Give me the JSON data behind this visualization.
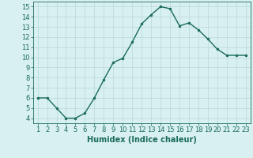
{
  "x": [
    1,
    2,
    3,
    4,
    5,
    6,
    7,
    8,
    9,
    10,
    11,
    12,
    13,
    14,
    15,
    16,
    17,
    18,
    19,
    20,
    21,
    22,
    23
  ],
  "y": [
    6,
    6,
    5,
    4,
    4,
    4.5,
    6,
    7.8,
    9.5,
    9.9,
    11.5,
    13.3,
    14.2,
    15,
    14.8,
    13.1,
    13.4,
    12.7,
    11.8,
    10.8,
    10.2,
    10.2,
    10.2
  ],
  "line_color": "#1a6b5a",
  "marker": "o",
  "marker_size": 2,
  "line_width": 1.0,
  "bg_color": "#d8f0f0",
  "grid_color": "#b8d8d8",
  "xlabel": "Humidex (Indice chaleur)",
  "xlabel_fontsize": 7,
  "tick_fontsize": 6,
  "ylim": [
    3.5,
    15.5
  ],
  "yticks": [
    4,
    5,
    6,
    7,
    8,
    9,
    10,
    11,
    12,
    13,
    14,
    15
  ],
  "xlim": [
    0.5,
    23.5
  ],
  "xticks": [
    1,
    2,
    3,
    4,
    5,
    6,
    7,
    8,
    9,
    10,
    11,
    12,
    13,
    14,
    15,
    16,
    17,
    18,
    19,
    20,
    21,
    22,
    23
  ]
}
